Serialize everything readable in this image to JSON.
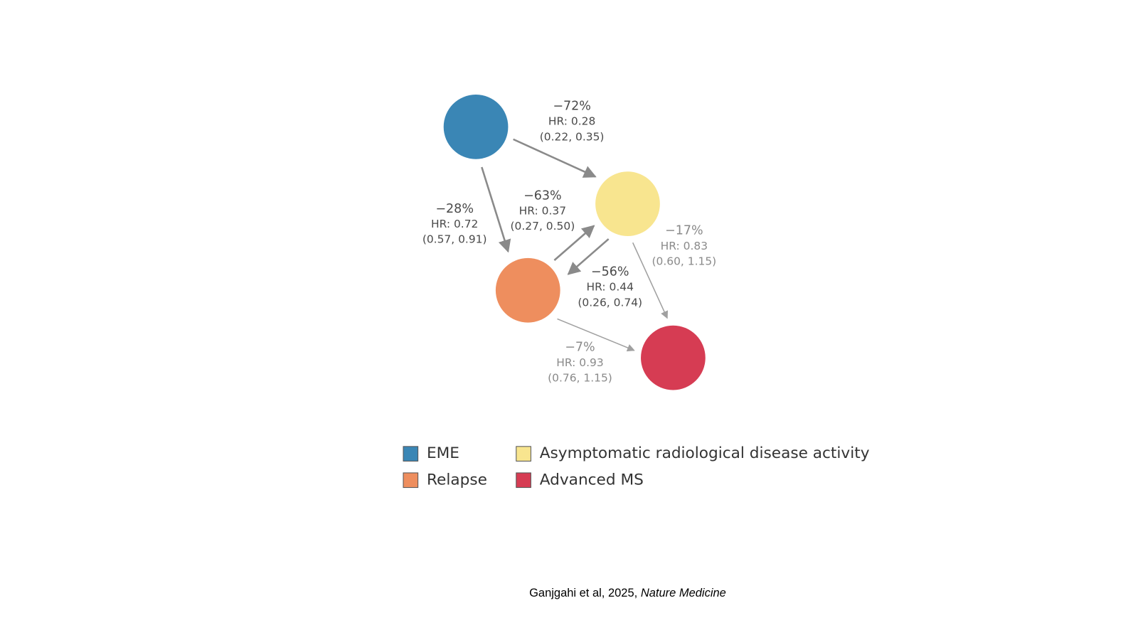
{
  "nodes": [
    {
      "name": "EME",
      "color": "#3a86b5"
    },
    {
      "name": "Asymptomatic radiological disease activity",
      "color": "#f8e58f"
    },
    {
      "name": "Relapse",
      "color": "#ee8e5e"
    },
    {
      "name": "Advanced MS",
      "color": "#d63c53"
    }
  ],
  "edges": [
    {
      "percent": "−72%",
      "hr": "HR: 0.28",
      "ci": "(0.22, 0.35)"
    },
    {
      "percent": "−28%",
      "hr": "HR: 0.72",
      "ci": "(0.57, 0.91)"
    },
    {
      "percent": "−63%",
      "hr": "HR: 0.37",
      "ci": "(0.27, 0.50)"
    },
    {
      "percent": "−56%",
      "hr": "HR: 0.44",
      "ci": "(0.26, 0.74)"
    },
    {
      "percent": "−17%",
      "hr": "HR: 0.83",
      "ci": "(0.60, 1.15)"
    },
    {
      "percent": "−7%",
      "hr": "HR: 0.93",
      "ci": "(0.76, 1.15)"
    }
  ],
  "citation": {
    "text": "Ganjgahi et al, 2025,",
    "journal": "Nature Medicine"
  }
}
